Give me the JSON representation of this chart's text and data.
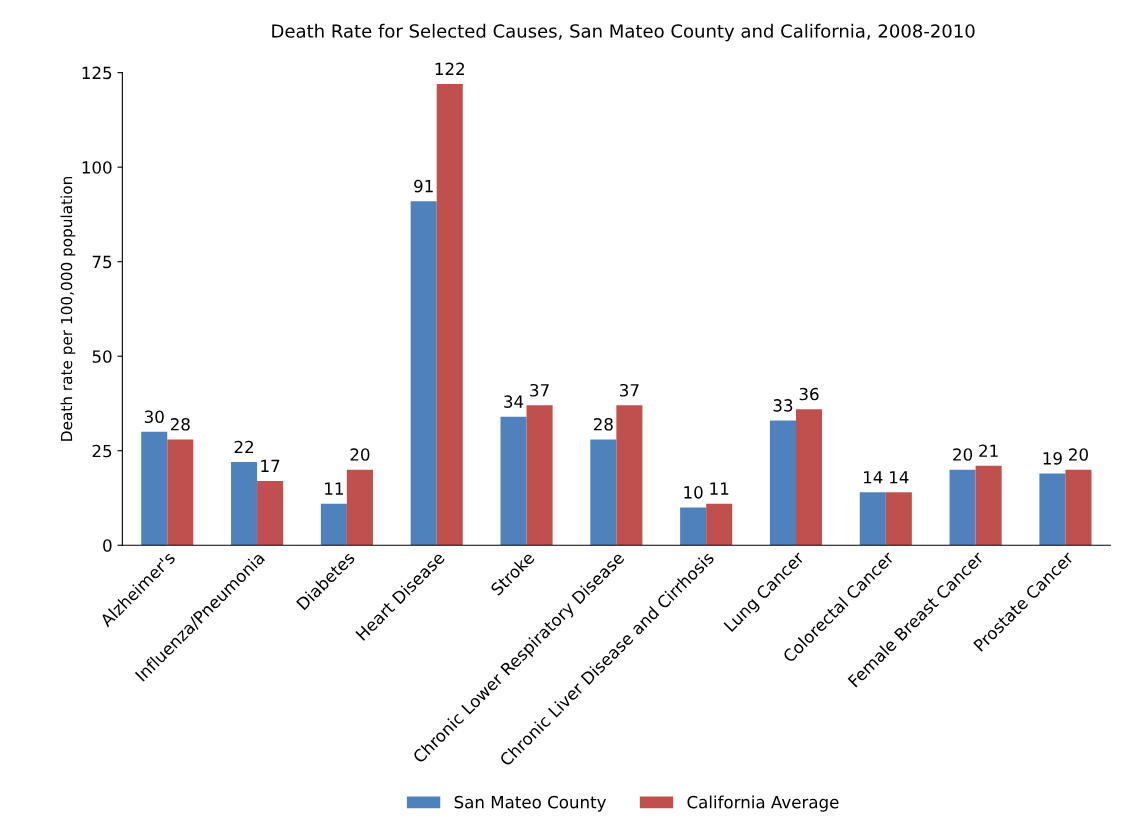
{
  "chart_data": {
    "type": "bar",
    "title": "Death Rate for Selected Causes, San Mateo County and California, 2008-2010",
    "ylabel": "Death rate per 100,000 population",
    "categories": [
      "Alzheimer's",
      "Influenza/Pneumonia",
      "Diabetes",
      "Heart Disease",
      "Stroke",
      "Chronic Lower Respiratory Disease",
      "Chronic Liver Disease and Cirrhosis",
      "Lung Cancer",
      "Colorectal Cancer",
      "Female Breast Cancer",
      "Prostate Cancer"
    ],
    "series": [
      {
        "name": "San Mateo County",
        "color": "#4f81bd",
        "values": [
          30,
          22,
          11,
          91,
          34,
          28,
          10,
          33,
          14,
          20,
          19
        ]
      },
      {
        "name": "California Average",
        "color": "#c0504d",
        "values": [
          28,
          17,
          20,
          122,
          37,
          37,
          11,
          36,
          14,
          21,
          20
        ]
      }
    ],
    "ylim": [
      0,
      125
    ],
    "yticks": [
      0,
      25,
      50,
      75,
      100,
      125
    ],
    "grid": false,
    "legend": "bottom",
    "data_labels": true
  }
}
